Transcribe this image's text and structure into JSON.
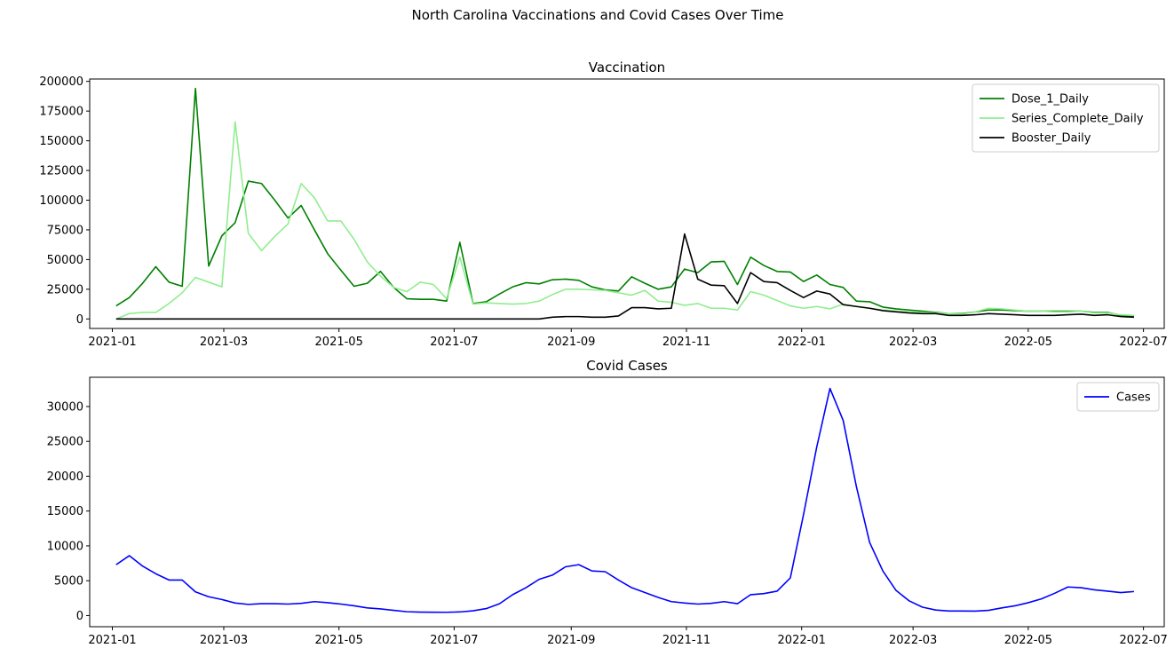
{
  "suptitle": "North Carolina Vaccinations and Covid Cases Over Time",
  "chart_data": [
    {
      "type": "line",
      "title": "Vaccination",
      "xlim": [
        "2020-12-20",
        "2022-07-12"
      ],
      "ylim": [
        -8000,
        202000
      ],
      "x_ticks": [
        "2021-01",
        "2021-03",
        "2021-05",
        "2021-07",
        "2021-09",
        "2021-11",
        "2022-01",
        "2022-03",
        "2022-05",
        "2022-07"
      ],
      "y_ticks": [
        0,
        25000,
        50000,
        75000,
        100000,
        125000,
        150000,
        175000,
        200000
      ],
      "legend_position": "upper-right",
      "x": [
        "2021-01-03",
        "2021-01-10",
        "2021-01-17",
        "2021-01-24",
        "2021-01-31",
        "2021-02-07",
        "2021-02-14",
        "2021-02-21",
        "2021-02-28",
        "2021-03-07",
        "2021-03-14",
        "2021-03-21",
        "2021-03-28",
        "2021-04-04",
        "2021-04-11",
        "2021-04-18",
        "2021-04-25",
        "2021-05-02",
        "2021-05-09",
        "2021-05-16",
        "2021-05-23",
        "2021-05-30",
        "2021-06-06",
        "2021-06-13",
        "2021-06-20",
        "2021-06-27",
        "2021-07-04",
        "2021-07-11",
        "2021-07-18",
        "2021-07-25",
        "2021-08-01",
        "2021-08-08",
        "2021-08-15",
        "2021-08-22",
        "2021-08-29",
        "2021-09-05",
        "2021-09-12",
        "2021-09-19",
        "2021-09-26",
        "2021-10-03",
        "2021-10-10",
        "2021-10-17",
        "2021-10-24",
        "2021-10-31",
        "2021-11-07",
        "2021-11-14",
        "2021-11-21",
        "2021-11-28",
        "2021-12-05",
        "2021-12-12",
        "2021-12-19",
        "2021-12-26",
        "2022-01-02",
        "2022-01-09",
        "2022-01-16",
        "2022-01-23",
        "2022-01-30",
        "2022-02-06",
        "2022-02-13",
        "2022-02-20",
        "2022-02-27",
        "2022-03-06",
        "2022-03-13",
        "2022-03-20",
        "2022-03-27",
        "2022-04-03",
        "2022-04-10",
        "2022-04-17",
        "2022-04-24",
        "2022-05-01",
        "2022-05-08",
        "2022-05-15",
        "2022-05-22",
        "2022-05-29",
        "2022-06-05",
        "2022-06-12",
        "2022-06-19",
        "2022-06-26"
      ],
      "series": [
        {
          "name": "Dose_1_Daily",
          "color": "#008000",
          "values": [
            11000,
            18000,
            30000,
            44000,
            31000,
            27500,
            194000,
            44500,
            70000,
            81000,
            116000,
            114000,
            100000,
            85000,
            95500,
            75000,
            55000,
            41000,
            27500,
            30000,
            40000,
            26500,
            17000,
            16500,
            16500,
            15000,
            64500,
            13000,
            14500,
            21000,
            27000,
            30500,
            29500,
            33000,
            33500,
            32500,
            27000,
            24500,
            23500,
            35500,
            30000,
            25000,
            27000,
            42000,
            39000,
            48000,
            48500,
            29000,
            52000,
            45000,
            40000,
            39500,
            31500,
            37000,
            29000,
            26500,
            15000,
            14500,
            10000,
            8500,
            7500,
            6500,
            5500,
            4500,
            4500,
            6000,
            7500,
            7500,
            7000,
            6500,
            6500,
            6500,
            6500,
            6500,
            5500,
            5500,
            3000,
            2500
          ]
        },
        {
          "name": "Series_Complete_Daily",
          "color": "#90ee90",
          "values": [
            0,
            4500,
            5500,
            5500,
            13000,
            22000,
            35000,
            31000,
            27000,
            166000,
            72000,
            57500,
            69500,
            80000,
            114000,
            102000,
            82500,
            82500,
            67000,
            48000,
            36000,
            26500,
            23000,
            31000,
            29000,
            17000,
            52000,
            12500,
            13500,
            13000,
            12500,
            13000,
            15000,
            20500,
            25000,
            25000,
            24500,
            24000,
            22000,
            20000,
            24000,
            15000,
            14000,
            11500,
            13000,
            9000,
            9000,
            7500,
            23000,
            20000,
            15500,
            11000,
            9000,
            10500,
            8500,
            12500,
            10500,
            9000,
            7500,
            6500,
            6000,
            5500,
            5000,
            4500,
            4000,
            6000,
            9000,
            8500,
            7500,
            6500,
            6500,
            6000,
            6000,
            6500,
            5000,
            5000,
            3500,
            3000
          ]
        },
        {
          "name": "Booster_Daily",
          "color": "#000000",
          "values": [
            0,
            0,
            0,
            0,
            0,
            0,
            0,
            0,
            0,
            0,
            0,
            0,
            0,
            0,
            0,
            0,
            0,
            0,
            0,
            0,
            0,
            0,
            0,
            0,
            0,
            0,
            0,
            0,
            0,
            0,
            0,
            0,
            0,
            1500,
            2000,
            2000,
            1500,
            1500,
            2500,
            9500,
            9500,
            8500,
            9000,
            71500,
            33500,
            28500,
            28000,
            13000,
            39000,
            31500,
            30500,
            24000,
            18000,
            23500,
            21000,
            12000,
            10500,
            9000,
            7000,
            6000,
            5000,
            4500,
            4500,
            3000,
            3000,
            3500,
            4500,
            4000,
            3500,
            3000,
            3000,
            3000,
            3500,
            4000,
            3000,
            3500,
            2000,
            1500
          ]
        }
      ]
    },
    {
      "type": "line",
      "title": "Covid Cases",
      "xlim": [
        "2020-12-20",
        "2022-07-12"
      ],
      "ylim": [
        -1600,
        34200
      ],
      "x_ticks": [
        "2021-01",
        "2021-03",
        "2021-05",
        "2021-07",
        "2021-09",
        "2021-11",
        "2022-01",
        "2022-03",
        "2022-05",
        "2022-07"
      ],
      "y_ticks": [
        0,
        5000,
        10000,
        15000,
        20000,
        25000,
        30000
      ],
      "legend_position": "upper-right",
      "x": [
        "2021-01-03",
        "2021-01-10",
        "2021-01-17",
        "2021-01-24",
        "2021-01-31",
        "2021-02-07",
        "2021-02-14",
        "2021-02-21",
        "2021-02-28",
        "2021-03-07",
        "2021-03-14",
        "2021-03-21",
        "2021-03-28",
        "2021-04-04",
        "2021-04-11",
        "2021-04-18",
        "2021-04-25",
        "2021-05-02",
        "2021-05-09",
        "2021-05-16",
        "2021-05-23",
        "2021-05-30",
        "2021-06-06",
        "2021-06-13",
        "2021-06-20",
        "2021-06-27",
        "2021-07-04",
        "2021-07-11",
        "2021-07-18",
        "2021-07-25",
        "2021-08-01",
        "2021-08-08",
        "2021-08-15",
        "2021-08-22",
        "2021-08-29",
        "2021-09-05",
        "2021-09-12",
        "2021-09-19",
        "2021-09-26",
        "2021-10-03",
        "2021-10-10",
        "2021-10-17",
        "2021-10-24",
        "2021-10-31",
        "2021-11-07",
        "2021-11-14",
        "2021-11-21",
        "2021-11-28",
        "2021-12-05",
        "2021-12-12",
        "2021-12-19",
        "2021-12-26",
        "2022-01-02",
        "2022-01-09",
        "2022-01-16",
        "2022-01-23",
        "2022-01-30",
        "2022-02-06",
        "2022-02-13",
        "2022-02-20",
        "2022-02-27",
        "2022-03-06",
        "2022-03-13",
        "2022-03-20",
        "2022-03-27",
        "2022-04-03",
        "2022-04-10",
        "2022-04-17",
        "2022-04-24",
        "2022-05-01",
        "2022-05-08",
        "2022-05-15",
        "2022-05-22",
        "2022-05-29",
        "2022-06-05",
        "2022-06-12",
        "2022-06-19",
        "2022-06-26"
      ],
      "series": [
        {
          "name": "Cases",
          "color": "#0000ff",
          "values": [
            7300,
            8600,
            7100,
            6000,
            5100,
            5100,
            3400,
            2700,
            2300,
            1800,
            1600,
            1700,
            1700,
            1650,
            1750,
            2000,
            1850,
            1650,
            1400,
            1100,
            950,
            750,
            550,
            500,
            480,
            470,
            520,
            680,
            1000,
            1700,
            3000,
            4000,
            5200,
            5800,
            7000,
            7300,
            6400,
            6300,
            5100,
            4000,
            3300,
            2600,
            2000,
            1800,
            1650,
            1750,
            2000,
            1700,
            3000,
            3150,
            3500,
            5400,
            14500,
            24200,
            32600,
            28000,
            18500,
            10500,
            6400,
            3600,
            2100,
            1200,
            800,
            650,
            650,
            640,
            750,
            1100,
            1400,
            1850,
            2400,
            3200,
            4100,
            4000,
            3700,
            3500,
            3300,
            3450
          ]
        }
      ]
    }
  ]
}
